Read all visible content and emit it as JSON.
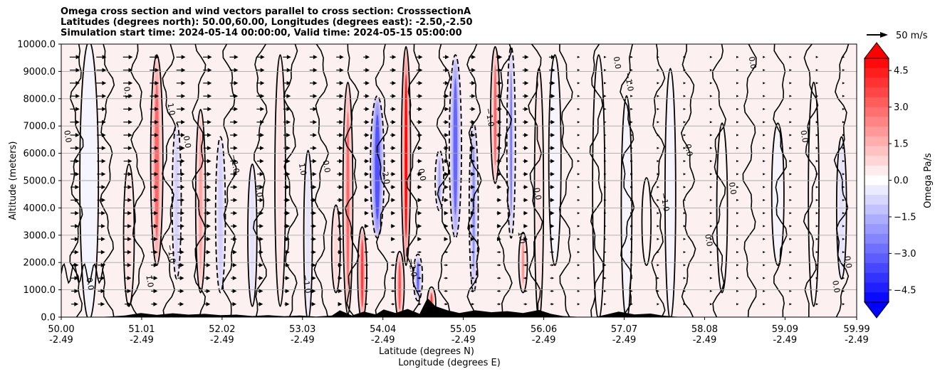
{
  "chart_data": {
    "type": "heatmap",
    "title_lines": [
      "Omega cross section and wind vectors parallel to cross section: CrosssectionA",
      "Latitudes (degrees north): 50.00,60.00, Longitudes (degrees east): -2.50,-2.50",
      "Simulation start time: 2024-05-14 00:00:00, Valid time: 2024-05-15 05:00:00"
    ],
    "ylabel": "Altitude (meters)",
    "xlabel_line1": "Latitude (degrees N)",
    "xlabel_line2": "Longitude (degrees E)",
    "ylim": [
      0,
      10000
    ],
    "xlim": [
      50.0,
      59.99
    ],
    "yticks": [
      "0.0",
      "1000.0",
      "2000.0",
      "3000.0",
      "4000.0",
      "5000.0",
      "6000.0",
      "7000.0",
      "8000.0",
      "9000.0",
      "10000.0"
    ],
    "ytick_values": [
      0,
      1000,
      2000,
      3000,
      4000,
      5000,
      6000,
      7000,
      8000,
      9000,
      10000
    ],
    "xticks": [
      {
        "lat": "50.00",
        "lon": "-2.49",
        "value": 50.0
      },
      {
        "lat": "51.01",
        "lon": "-2.49",
        "value": 51.01
      },
      {
        "lat": "52.02",
        "lon": "-2.49",
        "value": 52.02
      },
      {
        "lat": "53.03",
        "lon": "-2.49",
        "value": 53.03
      },
      {
        "lat": "54.04",
        "lon": "-2.49",
        "value": 54.04
      },
      {
        "lat": "55.05",
        "lon": "-2.49",
        "value": 55.05
      },
      {
        "lat": "56.06",
        "lon": "-2.49",
        "value": 56.06
      },
      {
        "lat": "57.07",
        "lon": "-2.49",
        "value": 57.07
      },
      {
        "lat": "58.08",
        "lon": "-2.49",
        "value": 58.08
      },
      {
        "lat": "59.09",
        "lon": "-2.49",
        "value": 59.09
      },
      {
        "lat": "59.99",
        "lon": "-2.49",
        "value": 59.99
      }
    ],
    "grid": "horizontal",
    "colorbar": {
      "label": "Omega Pa/s",
      "range": [
        -5.0,
        5.0
      ],
      "ticks": [
        "4.5",
        "3.0",
        "1.5",
        "0.0",
        "−1.5",
        "−3.0",
        "−4.5"
      ],
      "tick_values": [
        4.5,
        3.0,
        1.5,
        0.0,
        -1.5,
        -3.0,
        -4.5
      ],
      "extend": "both",
      "colormap": "bwr"
    },
    "quiver_key": {
      "label": "50 m/s"
    },
    "omega_bands": [
      {
        "x": 50.35,
        "y0": 0,
        "y1": 10000,
        "w": 0.18,
        "v": -0.2
      },
      {
        "x": 50.85,
        "y0": 500,
        "y1": 5500,
        "w": 0.08,
        "v": 0.8
      },
      {
        "x": 51.2,
        "y0": 2000,
        "y1": 9500,
        "w": 0.1,
        "v": 2.0
      },
      {
        "x": 51.45,
        "y0": 1500,
        "y1": 7000,
        "w": 0.06,
        "v": -1.2
      },
      {
        "x": 51.75,
        "y0": 1000,
        "y1": 7500,
        "w": 0.07,
        "v": 1.3
      },
      {
        "x": 52.0,
        "y0": 1000,
        "y1": 6500,
        "w": 0.07,
        "v": -0.9
      },
      {
        "x": 52.4,
        "y0": 500,
        "y1": 5500,
        "w": 0.06,
        "v": -0.7
      },
      {
        "x": 52.75,
        "y0": 500,
        "y1": 9500,
        "w": 0.08,
        "v": 0.6
      },
      {
        "x": 53.1,
        "y0": 0,
        "y1": 6000,
        "w": 0.05,
        "v": -0.8
      },
      {
        "x": 53.45,
        "y0": 1000,
        "y1": 4000,
        "w": 0.05,
        "v": 0.9
      },
      {
        "x": 53.6,
        "y0": 200,
        "y1": 8500,
        "w": 0.07,
        "v": 2.0
      },
      {
        "x": 53.78,
        "y0": 0,
        "y1": 3200,
        "w": 0.06,
        "v": 2.6
      },
      {
        "x": 53.97,
        "y0": 3000,
        "y1": 8000,
        "w": 0.12,
        "v": -2.2
      },
      {
        "x": 54.25,
        "y0": 0,
        "y1": 2300,
        "w": 0.06,
        "v": 2.2
      },
      {
        "x": 54.33,
        "y0": 2000,
        "y1": 9800,
        "w": 0.06,
        "v": 3.2
      },
      {
        "x": 54.48,
        "y0": 700,
        "y1": 2200,
        "w": 0.06,
        "v": -2.0
      },
      {
        "x": 54.65,
        "y0": 0,
        "y1": 1000,
        "w": 0.05,
        "v": 2.6
      },
      {
        "x": 54.75,
        "y0": 4000,
        "y1": 6000,
        "w": 0.05,
        "v": -1.3
      },
      {
        "x": 54.95,
        "y0": 3000,
        "y1": 9500,
        "w": 0.1,
        "v": -2.0
      },
      {
        "x": 55.18,
        "y0": 1000,
        "y1": 7000,
        "w": 0.06,
        "v": -1.4
      },
      {
        "x": 55.45,
        "y0": 5000,
        "y1": 9800,
        "w": 0.06,
        "v": 2.0
      },
      {
        "x": 55.65,
        "y0": 3000,
        "y1": 9800,
        "w": 0.05,
        "v": -1.6
      },
      {
        "x": 55.8,
        "y0": 1000,
        "y1": 3000,
        "w": 0.05,
        "v": 1.5
      },
      {
        "x": 56.0,
        "y0": 0,
        "y1": 9000,
        "w": 0.06,
        "v": 0.5
      },
      {
        "x": 56.2,
        "y0": 2000,
        "y1": 9500,
        "w": 0.1,
        "v": -0.4
      },
      {
        "x": 56.75,
        "y0": 0,
        "y1": 9500,
        "w": 0.1,
        "v": 0.25
      },
      {
        "x": 57.1,
        "y0": 0,
        "y1": 8000,
        "w": 0.08,
        "v": -0.4
      },
      {
        "x": 57.35,
        "y0": 2000,
        "y1": 5000,
        "w": 0.06,
        "v": 0.4
      },
      {
        "x": 57.65,
        "y0": 0,
        "y1": 9000,
        "w": 0.08,
        "v": -0.3
      },
      {
        "x": 58.3,
        "y0": 1000,
        "y1": 7000,
        "w": 0.08,
        "v": 0.3
      },
      {
        "x": 59.0,
        "y0": 2000,
        "y1": 7000,
        "w": 0.1,
        "v": -0.35
      },
      {
        "x": 59.45,
        "y0": 500,
        "y1": 8500,
        "w": 0.08,
        "v": 0.3
      },
      {
        "x": 59.8,
        "y0": 1500,
        "y1": 6500,
        "w": 0.07,
        "v": -0.5
      }
    ],
    "contour_labels": [
      {
        "x": 50.05,
        "y": 6600,
        "text": "0.0"
      },
      {
        "x": 50.33,
        "y": 1200,
        "text": "0.0"
      },
      {
        "x": 50.8,
        "y": 8200,
        "text": "0.1"
      },
      {
        "x": 51.08,
        "y": 1300,
        "text": "1.0"
      },
      {
        "x": 51.35,
        "y": 7600,
        "text": "1.0"
      },
      {
        "x": 51.55,
        "y": 6400,
        "text": "0.0"
      },
      {
        "x": 51.35,
        "y": 2300,
        "text": "−1.0"
      },
      {
        "x": 52.15,
        "y": 5600,
        "text": "−1.0"
      },
      {
        "x": 52.45,
        "y": 4600,
        "text": "0.0"
      },
      {
        "x": 53.0,
        "y": 5400,
        "text": "1.0"
      },
      {
        "x": 53.05,
        "y": 1200,
        "text": "−1.0"
      },
      {
        "x": 53.3,
        "y": 5500,
        "text": "0.0"
      },
      {
        "x": 54.04,
        "y": 5200,
        "text": "−2.0"
      },
      {
        "x": 54.38,
        "y": 1800,
        "text": "−2.0"
      },
      {
        "x": 54.5,
        "y": 5200,
        "text": "0.0"
      },
      {
        "x": 55.35,
        "y": 7300,
        "text": "−1.0"
      },
      {
        "x": 55.75,
        "y": 2900,
        "text": "1.0"
      },
      {
        "x": 55.95,
        "y": 4500,
        "text": "0.0"
      },
      {
        "x": 56.95,
        "y": 9300,
        "text": "0.0"
      },
      {
        "x": 57.1,
        "y": 8600,
        "text": "−1.0"
      },
      {
        "x": 57.55,
        "y": 4200,
        "text": "−1.0"
      },
      {
        "x": 57.85,
        "y": 6100,
        "text": "0.0"
      },
      {
        "x": 58.1,
        "y": 2800,
        "text": "0.0"
      },
      {
        "x": 58.4,
        "y": 4700,
        "text": "0.0"
      },
      {
        "x": 58.65,
        "y": 9300,
        "text": "0.0"
      },
      {
        "x": 59.3,
        "y": 6600,
        "text": "0.0"
      },
      {
        "x": 59.7,
        "y": 1100,
        "text": "0.0"
      },
      {
        "x": 59.85,
        "y": 2000,
        "text": "0.0"
      }
    ],
    "terrain": [
      [
        50.0,
        0
      ],
      [
        50.4,
        0
      ],
      [
        50.6,
        20
      ],
      [
        50.8,
        60
      ],
      [
        51.0,
        150
      ],
      [
        51.2,
        80
      ],
      [
        51.4,
        140
      ],
      [
        51.6,
        90
      ],
      [
        51.8,
        120
      ],
      [
        52.0,
        70
      ],
      [
        52.2,
        90
      ],
      [
        52.4,
        40
      ],
      [
        52.6,
        70
      ],
      [
        52.8,
        30
      ],
      [
        53.0,
        60
      ],
      [
        53.2,
        20
      ],
      [
        53.4,
        60
      ],
      [
        53.5,
        250
      ],
      [
        53.65,
        60
      ],
      [
        53.8,
        200
      ],
      [
        53.95,
        100
      ],
      [
        54.05,
        280
      ],
      [
        54.2,
        150
      ],
      [
        54.35,
        300
      ],
      [
        54.5,
        120
      ],
      [
        54.6,
        700
      ],
      [
        54.7,
        400
      ],
      [
        54.85,
        250
      ],
      [
        55.0,
        150
      ],
      [
        55.2,
        250
      ],
      [
        55.4,
        180
      ],
      [
        55.6,
        220
      ],
      [
        55.8,
        150
      ],
      [
        56.0,
        260
      ],
      [
        56.15,
        120
      ],
      [
        56.3,
        40
      ],
      [
        56.5,
        10
      ],
      [
        56.7,
        0
      ],
      [
        56.85,
        100
      ],
      [
        57.0,
        200
      ],
      [
        57.2,
        100
      ],
      [
        57.4,
        130
      ],
      [
        57.55,
        60
      ],
      [
        57.7,
        20
      ],
      [
        57.85,
        0
      ],
      [
        59.99,
        0
      ]
    ]
  }
}
